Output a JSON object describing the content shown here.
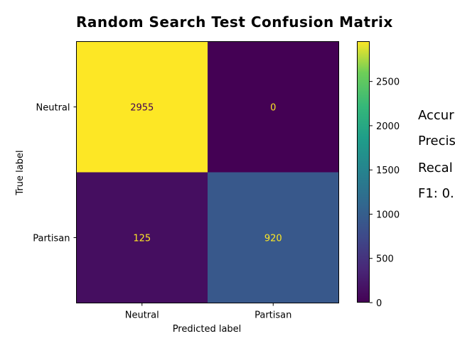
{
  "chart_data": {
    "type": "heatmap",
    "title": "Random Search Test Confusion Matrix",
    "xlabel": "Predicted label",
    "ylabel": "True label",
    "x_categories": [
      "Neutral",
      "Partisan"
    ],
    "y_categories": [
      "Neutral",
      "Partisan"
    ],
    "matrix": [
      [
        2955,
        0
      ],
      [
        125,
        920
      ]
    ],
    "colormap": "viridis",
    "colorbar": {
      "range": [
        0,
        2955
      ],
      "ticks": [
        0,
        500,
        1000,
        1500,
        2000,
        2500
      ]
    },
    "grid": false
  },
  "metrics": {
    "accuracy": "Accur",
    "precision": "Precis",
    "recall": "Recal",
    "f1": "F1: 0."
  }
}
